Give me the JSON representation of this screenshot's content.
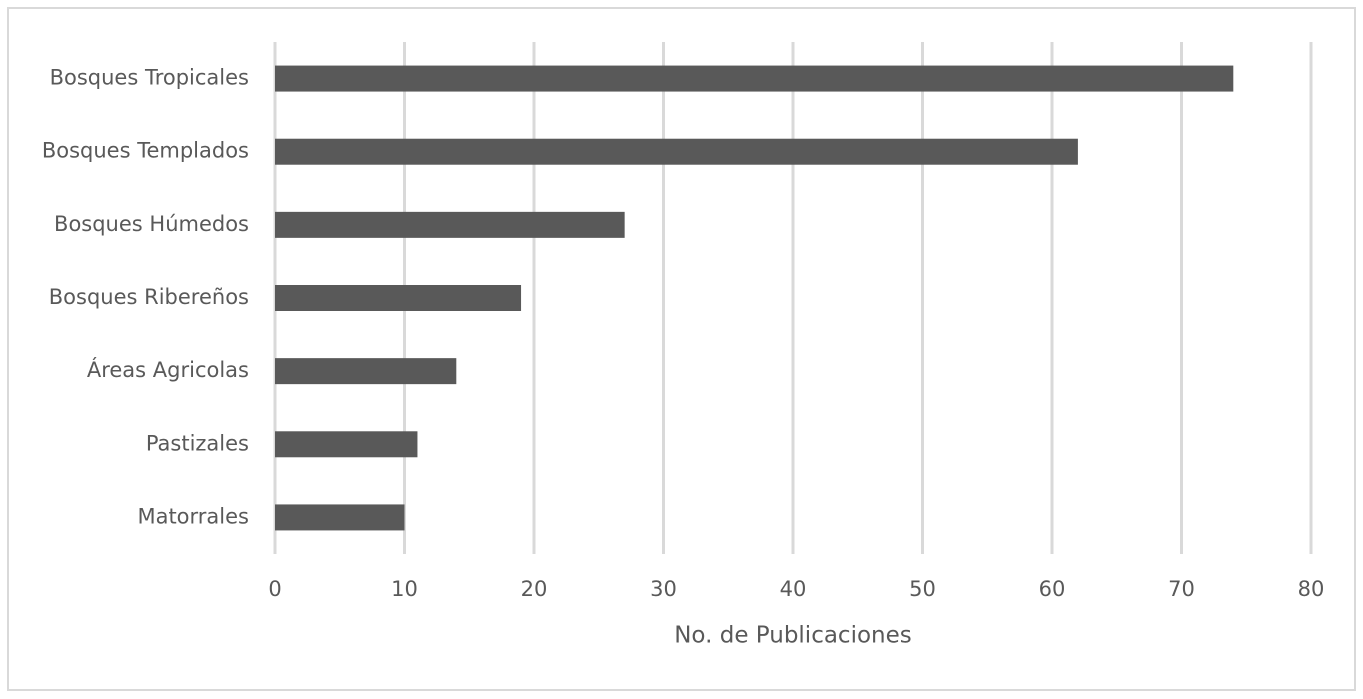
{
  "chart_data": {
    "type": "bar",
    "orientation": "horizontal",
    "categories": [
      "Bosques Tropicales",
      "Bosques Templados",
      "Bosques Húmedos",
      "Bosques Ribereños",
      "Áreas Agricolas",
      "Pastizales",
      "Matorrales"
    ],
    "values": [
      74,
      62,
      27,
      19,
      14,
      11,
      10
    ],
    "color": "#595959",
    "x_label": "No. de Publicaciones",
    "xlim": [
      0,
      80
    ],
    "xticks": [
      0,
      10,
      20,
      30,
      40,
      50,
      60,
      70,
      80
    ],
    "grid": true
  }
}
